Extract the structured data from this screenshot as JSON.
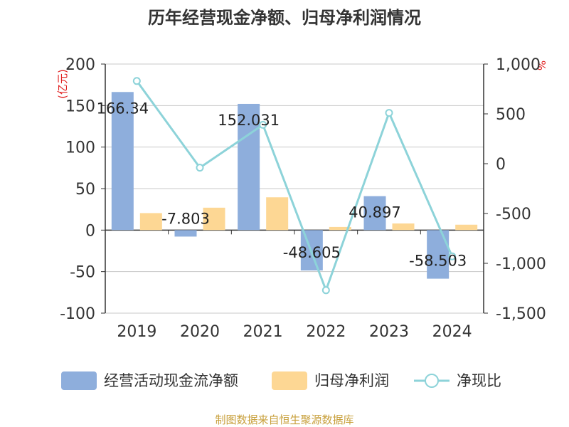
{
  "chart_data": {
    "type": "bar+line",
    "title": "历年经营现金净额、归母净利润情况",
    "categories": [
      "2019",
      "2020",
      "2021",
      "2022",
      "2023",
      "2024"
    ],
    "left_unit": "(亿元)",
    "right_unit": "%",
    "left_ylim": [
      -100,
      200
    ],
    "left_ticks": [
      "200",
      "150",
      "100",
      "50",
      "0",
      "-50",
      "-100"
    ],
    "left_tick_values": [
      200,
      150,
      100,
      50,
      0,
      -50,
      -100
    ],
    "right_ylim": [
      -1500,
      1000
    ],
    "right_ticks": [
      "1,000",
      "500",
      "0",
      "-500",
      "-1,000",
      "-1,500"
    ],
    "right_tick_values": [
      1000,
      500,
      0,
      -500,
      -1000,
      -1500
    ],
    "series": [
      {
        "name": "经营活动现金流净额",
        "type": "bar",
        "axis": "left",
        "color": "#8eaedc",
        "values": [
          166.34,
          -7.803,
          152.031,
          -48.605,
          40.897,
          -58.503
        ],
        "labels": [
          "166.34",
          "-7.803",
          "152.031",
          "-48.605",
          "40.897",
          "-58.503"
        ]
      },
      {
        "name": "归母净利润",
        "type": "bar",
        "axis": "left",
        "color": "#fdd794",
        "values": [
          20.5,
          27.0,
          39.5,
          3.8,
          8.0,
          6.5
        ]
      },
      {
        "name": "净现比",
        "type": "line",
        "axis": "right",
        "color": "#8dd3d9",
        "values": [
          830,
          -40,
          390,
          -1270,
          510,
          -930
        ]
      }
    ]
  },
  "source": "制图数据来自恒生聚源数据库"
}
